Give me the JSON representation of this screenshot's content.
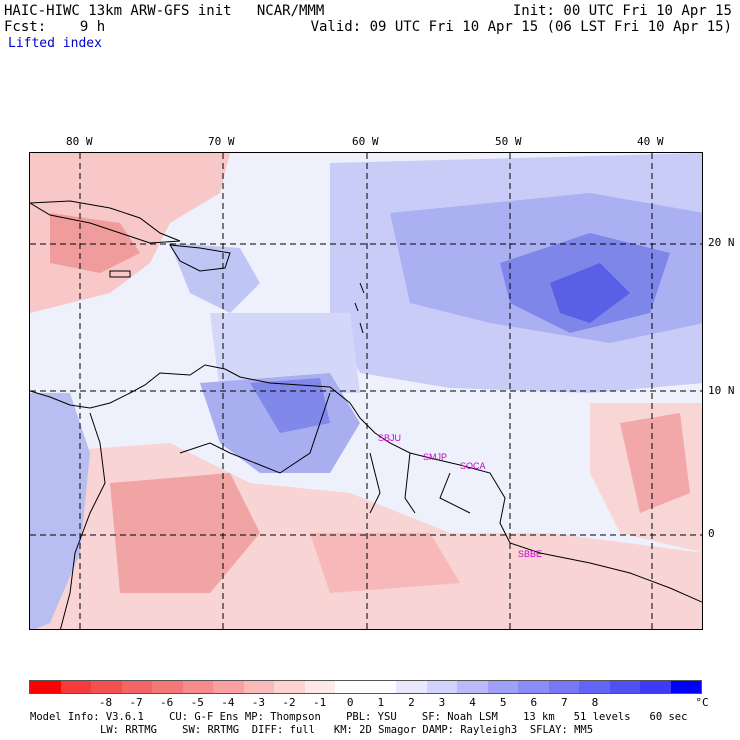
{
  "header": {
    "line1_left": "HAIC-HIWC 13km ARW-GFS init   NCAR/MMM",
    "line1_right": "Init: 00 UTC Fri 10 Apr 15",
    "line2_left": "Fcst:    9 h",
    "line2_right": "Valid: 09 UTC Fri 10 Apr 15 (06 LST Fri 10 Apr 15)",
    "field": "Lifted index"
  },
  "map": {
    "lon_labels": [
      "80 W",
      "70 W",
      "60 W",
      "50 W",
      "40 W"
    ],
    "lat_labels": [
      "20 N",
      "10 N",
      "0"
    ],
    "sites": [
      "SBJU",
      "SMJP",
      "SOCA",
      "SBBE"
    ],
    "land_color": "#f8d0d0",
    "ocean_color": "#d8dcf8"
  },
  "colorbar": {
    "colors": [
      "#ff0000",
      "#f53c3c",
      "#f55050",
      "#f56464",
      "#f57878",
      "#f88c8c",
      "#faa0a0",
      "#fbb9b9",
      "#fdd2d2",
      "#ffe8e8",
      "#ffffff",
      "#ffffff",
      "#e8e8ff",
      "#d2d2fd",
      "#b9b9fb",
      "#a0a0f8",
      "#8c8cf8",
      "#7878f5",
      "#6464f5",
      "#5050f5",
      "#3c3cf5",
      "#0000ff"
    ],
    "ticks": [
      "-8",
      "-7",
      "-6",
      "-5",
      "-4",
      "-3",
      "-2",
      "-1",
      "0",
      "1",
      "2",
      "3",
      "4",
      "5",
      "6",
      "7",
      "8"
    ],
    "unit": "°C"
  },
  "footer": {
    "line1": "Model Info: V3.6.1    CU: G-F Ens MP: Thompson    PBL: YSU    SF: Noah LSM    13 km   51 levels   60 sec",
    "line2": "LW: RRTMG    SW: RRTMG  DIFF: full   KM: 2D Smagor DAMP: Rayleigh3  SFLAY: MM5"
  }
}
